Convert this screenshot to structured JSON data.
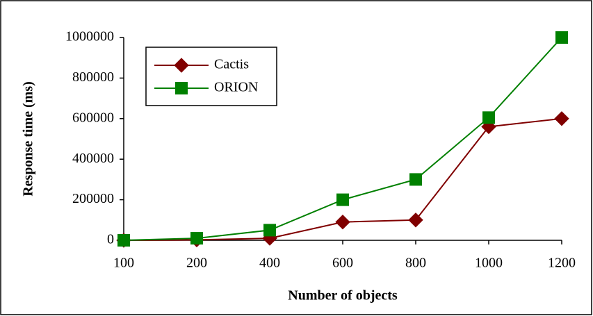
{
  "chart_data": {
    "type": "line",
    "categories": [
      "100",
      "200",
      "400",
      "600",
      "800",
      "1000",
      "1200"
    ],
    "series": [
      {
        "name": "Cactis",
        "color": "#800000",
        "marker": "diamond",
        "values": [
          0,
          2000,
          10000,
          90000,
          100000,
          560000,
          600000
        ]
      },
      {
        "name": "ORION",
        "color": "#008000",
        "marker": "square",
        "values": [
          0,
          10000,
          50000,
          200000,
          300000,
          605000,
          1000000
        ]
      }
    ],
    "xlabel": "Number of objects",
    "ylabel": "Response time (ms)",
    "ylim": [
      0,
      1000000
    ],
    "yticks": [
      0,
      200000,
      400000,
      600000,
      800000,
      1000000
    ],
    "grid": false,
    "legend": "upper left"
  }
}
